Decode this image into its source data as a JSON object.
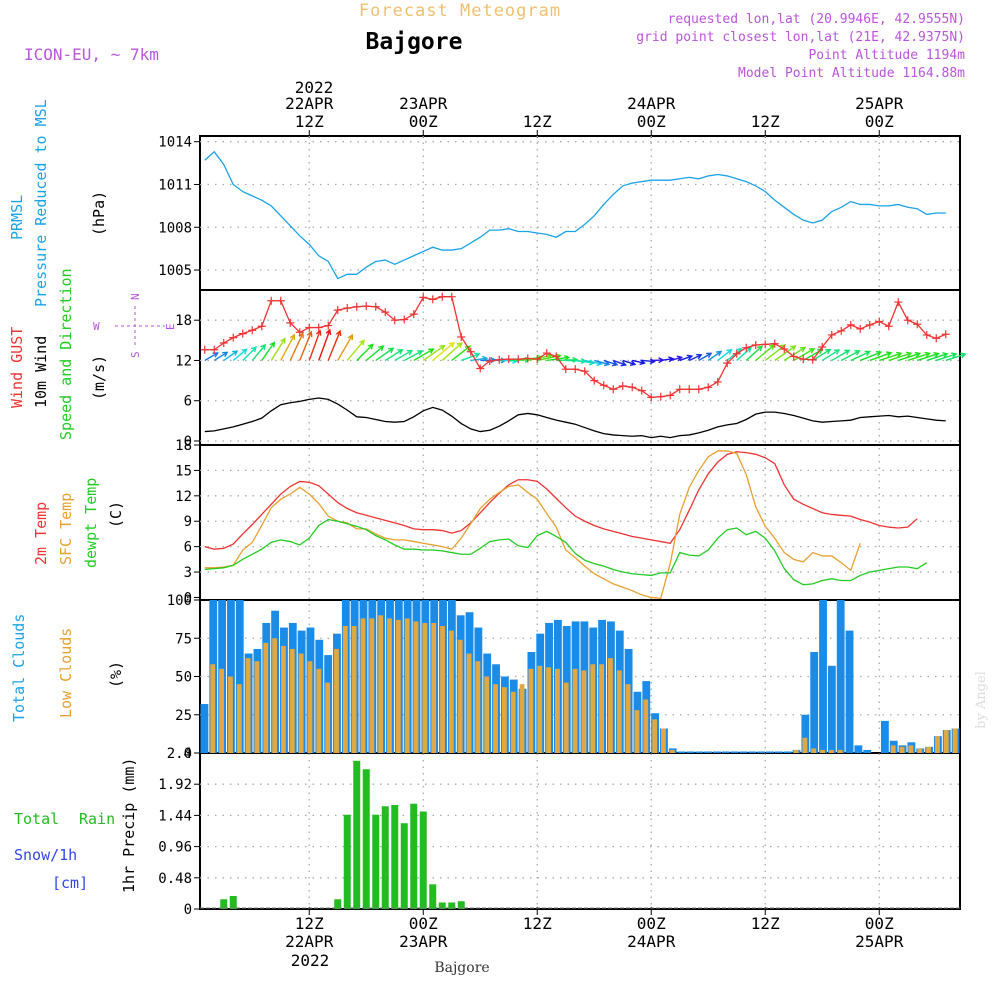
{
  "header": {
    "main_title": "Forecast Meteogram",
    "location": "Bajgore",
    "model": "ICON-EU, ~ 7km",
    "requested": "requested lon,lat (20.9946E, 42.9555N)",
    "grid_point": "grid point closest lon,lat (21E, 42.9375N)",
    "point_altitude": "Point Altitude 1194m",
    "model_altitude": "Model Point Altitude 1164.88m",
    "credit": "by Angel",
    "footer_location": "Bajgore"
  },
  "time_axis": {
    "top_year": "2022",
    "bottom_year": "2022",
    "ticks": [
      {
        "h": 12,
        "top": [
          "22APR",
          "12Z"
        ],
        "bottom": [
          "12Z",
          "22APR"
        ]
      },
      {
        "h": 24,
        "top": [
          "23APR",
          "00Z"
        ],
        "bottom": [
          "00Z",
          "23APR"
        ]
      },
      {
        "h": 36,
        "top": [
          "12Z"
        ],
        "bottom": [
          "12Z"
        ]
      },
      {
        "h": 48,
        "top": [
          "24APR",
          "00Z"
        ],
        "bottom": [
          "00Z",
          "24APR"
        ]
      },
      {
        "h": 60,
        "top": [
          "12Z"
        ],
        "bottom": [
          "12Z"
        ]
      },
      {
        "h": 72,
        "top": [
          "25APR",
          "00Z"
        ],
        "bottom": [
          "00Z",
          "25APR"
        ]
      }
    ]
  },
  "labels": {
    "prmsl": [
      "PRMSL",
      "Pressure Reduced to MSL",
      "(hPa)"
    ],
    "wind": [
      "Wind GUST",
      "10m Wind",
      "Speed and Direction",
      "(m/s)"
    ],
    "compass": {
      "n": "N",
      "s": "S",
      "e": "E",
      "w": "W"
    },
    "temp": [
      "2m Temp",
      "SFC Temp",
      "dewpt Temp",
      "(C)"
    ],
    "clouds": [
      "Total Clouds",
      "Low Clouds",
      "(%)"
    ],
    "precip": [
      "Total",
      "Rain",
      "Snow/1h",
      "[cm]",
      "1hr Precip (mm)"
    ]
  },
  "colors": {
    "pressure": "#1aa3e8",
    "gust": "#ee3333",
    "wind10": "#000000",
    "temp2m": "#ee3333",
    "tempsfc": "#e8a030",
    "dewpt": "#22cc22",
    "totalcloud": "#1a8ce8",
    "lowcloud": "#e0a840",
    "rain": "#22bb22",
    "snowlabel": "#3344ee",
    "model": "#bb55dd",
    "title": "#f0c070"
  },
  "chart_data": [
    {
      "type": "line",
      "name": "pressure",
      "x_start_hour": 1,
      "x_step_hours": 1,
      "ylim": [
        1003.6,
        1014.4
      ],
      "yticks": [
        1005,
        1008,
        1011,
        1014
      ],
      "values": [
        1012.7,
        1013.3,
        1012.4,
        1011.0,
        1010.5,
        1010.2,
        1009.9,
        1009.5,
        1008.8,
        1008.1,
        1007.4,
        1006.8,
        1006.0,
        1005.6,
        1004.4,
        1004.7,
        1004.7,
        1005.2,
        1005.6,
        1005.7,
        1005.4,
        1005.7,
        1006.0,
        1006.3,
        1006.6,
        1006.4,
        1006.4,
        1006.5,
        1006.9,
        1007.3,
        1007.8,
        1007.8,
        1007.9,
        1007.7,
        1007.7,
        1007.6,
        1007.5,
        1007.3,
        1007.7,
        1007.7,
        1008.2,
        1008.8,
        1009.6,
        1010.3,
        1010.9,
        1011.1,
        1011.2,
        1011.3,
        1011.3,
        1011.3,
        1011.4,
        1011.5,
        1011.4,
        1011.6,
        1011.7,
        1011.6,
        1011.4,
        1011.2,
        1010.9,
        1010.5,
        1009.9,
        1009.4,
        1008.9,
        1008.5,
        1008.3,
        1008.5,
        1009.1,
        1009.4,
        1009.8,
        1009.6,
        1009.6,
        1009.5,
        1009.5,
        1009.6,
        1009.4,
        1009.3,
        1008.9,
        1009.0,
        1009.0
      ]
    },
    {
      "type": "line",
      "name": "wind",
      "x_start_hour": 1,
      "x_step_hours": 1,
      "ylim": [
        -0.6,
        22.5
      ],
      "yticks": [
        0,
        6,
        12,
        18
      ],
      "gust": [
        13.6,
        13.6,
        14.6,
        15.4,
        16.0,
        16.5,
        17.1,
        20.9,
        20.9,
        17.6,
        16.2,
        16.9,
        16.9,
        17.2,
        19.5,
        19.8,
        20.0,
        20.1,
        20.0,
        19.2,
        18.0,
        18.1,
        18.9,
        21.4,
        21.1,
        21.5,
        21.5,
        15.5,
        13.3,
        10.8,
        11.9,
        12.1,
        12.2,
        12.2,
        12.3,
        12.2,
        13.1,
        12.6,
        10.7,
        10.7,
        10.4,
        9.0,
        8.3,
        7.7,
        8.2,
        8.0,
        7.5,
        6.5,
        6.6,
        6.8,
        7.7,
        7.7,
        7.7,
        8.0,
        8.8,
        11.6,
        13.0,
        13.9,
        14.3,
        14.4,
        14.5,
        13.7,
        12.6,
        12.2,
        12.1,
        14.0,
        15.8,
        16.4,
        17.3,
        16.7,
        17.3,
        17.8,
        17.1,
        20.7,
        18.0,
        17.4,
        15.8,
        15.3,
        15.9
      ],
      "wind10": [
        1.4,
        1.5,
        1.8,
        2.1,
        2.5,
        2.9,
        3.4,
        4.5,
        5.4,
        5.7,
        5.9,
        6.2,
        6.4,
        6.2,
        5.5,
        4.6,
        3.6,
        3.5,
        3.2,
        2.9,
        2.8,
        2.9,
        3.6,
        4.5,
        5.0,
        4.6,
        3.7,
        2.6,
        1.8,
        1.4,
        1.6,
        2.2,
        3.0,
        3.9,
        4.1,
        3.9,
        3.5,
        3.1,
        2.8,
        2.5,
        2.0,
        1.5,
        1.1,
        0.9,
        0.8,
        0.7,
        0.8,
        0.5,
        0.7,
        0.5,
        0.8,
        0.9,
        1.2,
        1.6,
        2.1,
        2.4,
        2.6,
        3.2,
        4.0,
        4.3,
        4.3,
        4.1,
        3.8,
        3.4,
        3.0,
        2.8,
        2.9,
        3.0,
        3.1,
        3.5,
        3.6,
        3.7,
        3.8,
        3.6,
        3.7,
        3.5,
        3.3,
        3.1,
        3.0
      ],
      "dir_deg": [
        240,
        238,
        235,
        230,
        225,
        220,
        215,
        212,
        208,
        205,
        202,
        200,
        200,
        202,
        210,
        220,
        225,
        230,
        235,
        238,
        240,
        242,
        240,
        235,
        230,
        228,
        232,
        250,
        262,
        268,
        270,
        272,
        268,
        262,
        258,
        258,
        262,
        268,
        272,
        278,
        282,
        285,
        288,
        290,
        288,
        282,
        275,
        268,
        262,
        255,
        250,
        245,
        240,
        235,
        232,
        230,
        228,
        228,
        230,
        232,
        235,
        238,
        240,
        240,
        238,
        238,
        240,
        242,
        245,
        248,
        250,
        252,
        252,
        252,
        252,
        252,
        252,
        252,
        252
      ]
    },
    {
      "type": "line",
      "name": "temperature",
      "x_start_hour": 1,
      "x_step_hours": 1,
      "ylim": [
        -0.3,
        18.0
      ],
      "yticks": [
        0,
        3,
        6,
        9,
        12,
        15,
        18
      ],
      "t2m": [
        6.0,
        5.7,
        5.8,
        6.3,
        7.5,
        8.6,
        9.8,
        11.0,
        12.2,
        13.1,
        13.7,
        13.6,
        13.2,
        12.2,
        11.2,
        10.5,
        10.0,
        9.7,
        9.4,
        9.1,
        8.8,
        8.5,
        8.1,
        8.0,
        8.0,
        7.9,
        7.6,
        7.9,
        8.8,
        10.0,
        11.2,
        12.3,
        13.3,
        13.9,
        13.9,
        13.7,
        12.8,
        11.7,
        10.6,
        9.6,
        9.0,
        8.5,
        8.1,
        7.8,
        7.5,
        7.2,
        7.0,
        6.8,
        6.6,
        6.4,
        8.0,
        10.3,
        12.7,
        14.6,
        16.0,
        16.9,
        17.2,
        17.1,
        16.9,
        16.5,
        15.8,
        13.3,
        11.6,
        11.0,
        10.5,
        10.0,
        9.8,
        9.7,
        9.6,
        9.2,
        8.9,
        8.5,
        8.3,
        8.2,
        8.3,
        9.3
      ],
      "tsfc": [
        3.5,
        3.5,
        3.6,
        3.8,
        5.6,
        6.5,
        8.5,
        10.6,
        11.6,
        12.2,
        13.0,
        12.2,
        11.1,
        9.6,
        9.0,
        8.8,
        8.1,
        8.1,
        7.5,
        7.0,
        6.8,
        6.8,
        6.6,
        6.4,
        6.2,
        6.0,
        5.7,
        7.0,
        8.7,
        10.5,
        11.6,
        12.4,
        13.1,
        13.3,
        12.4,
        11.6,
        9.9,
        8.3,
        5.6,
        4.7,
        3.7,
        2.8,
        2.2,
        1.6,
        1.2,
        0.8,
        0.3,
        0.0,
        -0.1,
        4.0,
        9.8,
        13.0,
        15.0,
        16.6,
        17.3,
        17.3,
        17.0,
        14.5,
        10.7,
        8.4,
        7.0,
        5.3,
        4.5,
        4.2,
        5.3,
        4.9,
        4.9,
        4.1,
        3.2,
        6.4
      ],
      "dewpt": [
        3.3,
        3.4,
        3.5,
        3.8,
        4.5,
        5.1,
        5.7,
        6.5,
        6.8,
        6.6,
        6.2,
        7.0,
        8.5,
        9.2,
        9.0,
        8.7,
        8.4,
        8.0,
        7.3,
        6.8,
        6.2,
        5.7,
        5.7,
        5.6,
        5.6,
        5.5,
        5.3,
        5.1,
        5.1,
        5.8,
        6.6,
        6.8,
        6.9,
        6.1,
        5.9,
        7.3,
        7.8,
        7.2,
        6.5,
        5.2,
        4.4,
        4.0,
        3.7,
        3.3,
        3.0,
        2.8,
        2.7,
        2.6,
        2.9,
        2.9,
        5.3,
        5.0,
        4.9,
        5.6,
        7.0,
        8.0,
        8.2,
        7.4,
        7.8,
        7.0,
        5.5,
        3.4,
        2.1,
        1.5,
        1.6,
        2.0,
        2.2,
        2.0,
        2.0,
        2.6,
        3.0,
        3.2,
        3.4,
        3.6,
        3.6,
        3.4,
        4.1
      ]
    },
    {
      "type": "bar",
      "name": "clouds",
      "x_start_hour": 1,
      "x_step_hours": 1,
      "ylim": [
        0,
        100
      ],
      "yticks": [
        0,
        25,
        50,
        75,
        100
      ],
      "total": [
        32,
        100,
        100,
        100,
        100,
        65,
        68,
        85,
        93,
        82,
        85,
        80,
        82,
        74,
        64,
        78,
        100,
        100,
        100,
        100,
        100,
        100,
        100,
        100,
        100,
        100,
        100,
        100,
        100,
        90,
        92,
        82,
        65,
        58,
        50,
        48,
        42,
        66,
        78,
        85,
        87,
        83,
        86,
        86,
        82,
        87,
        86,
        80,
        68,
        40,
        47,
        26,
        16,
        3,
        1,
        1,
        1,
        1,
        1,
        1,
        1,
        1,
        1,
        1,
        1,
        1,
        1,
        2,
        25,
        66,
        100,
        57,
        100,
        80,
        5,
        2,
        0,
        21,
        8,
        5,
        7,
        3,
        4,
        11,
        15,
        16
      ],
      "low": [
        0,
        58,
        55,
        50,
        45,
        62,
        60,
        72,
        75,
        70,
        68,
        65,
        60,
        55,
        46,
        68,
        83,
        83,
        88,
        88,
        90,
        88,
        87,
        88,
        86,
        85,
        85,
        83,
        80,
        74,
        65,
        60,
        50,
        45,
        43,
        40,
        45,
        55,
        57,
        56,
        55,
        46,
        55,
        54,
        58,
        58,
        62,
        54,
        45,
        28,
        35,
        22,
        16,
        2,
        0,
        0,
        0,
        0,
        0,
        0,
        0,
        0,
        0,
        0,
        0,
        0,
        0,
        2,
        10,
        3,
        2,
        2,
        2,
        0,
        0,
        0,
        0,
        0,
        5,
        4,
        5,
        3,
        4,
        11,
        15,
        16
      ]
    },
    {
      "type": "bar",
      "name": "precip",
      "x_start_hour": 1,
      "x_step_hours": 1,
      "ylim": [
        0,
        2.4
      ],
      "yticks": [
        0,
        0.48,
        0.96,
        1.44,
        1.92,
        2.4
      ],
      "ytick_labels": [
        "0",
        "0.48",
        "0.96",
        "1.44",
        "1.92",
        "2.4"
      ],
      "rain": [
        0,
        0,
        0.15,
        0.2,
        0,
        0,
        0,
        0,
        0,
        0,
        0,
        0,
        0,
        0,
        0.15,
        1.45,
        2.28,
        2.15,
        1.45,
        1.58,
        1.6,
        1.32,
        1.62,
        1.5,
        0.38,
        0.1,
        0.1,
        0.12,
        0,
        0,
        0,
        0,
        0,
        0,
        0,
        0,
        0,
        0,
        0,
        0,
        0,
        0,
        0,
        0,
        0,
        0,
        0,
        0,
        0,
        0,
        0,
        0,
        0,
        0,
        0,
        0,
        0,
        0,
        0,
        0,
        0,
        0,
        0,
        0,
        0,
        0,
        0,
        0,
        0,
        0,
        0,
        0,
        0,
        0,
        0,
        0,
        0,
        0
      ]
    }
  ]
}
